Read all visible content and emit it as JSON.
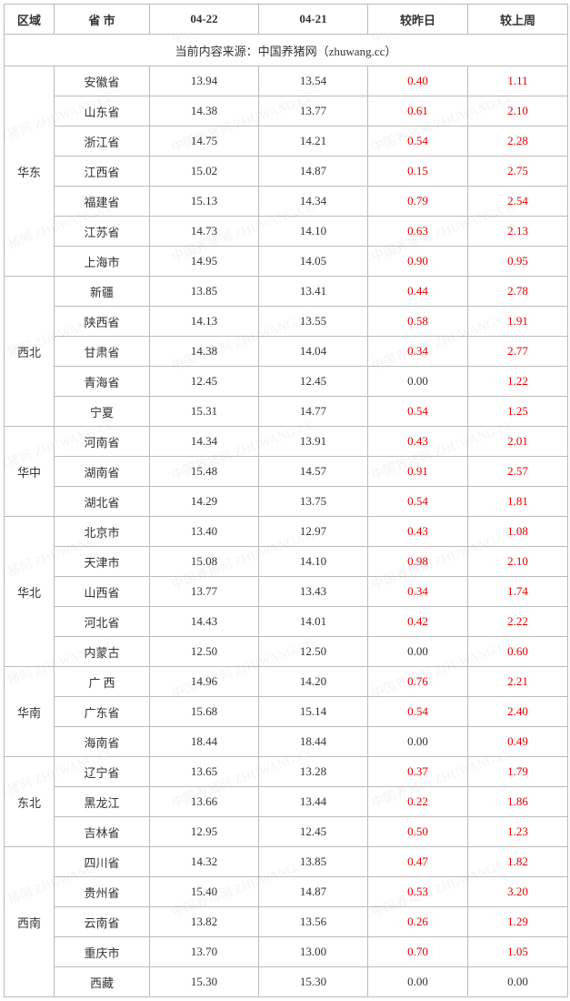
{
  "header": {
    "region": "区域",
    "province": "省 市",
    "date1": "04-22",
    "date2": "04-21",
    "chg_day": "较昨日",
    "chg_week": "较上周"
  },
  "source_line": "当前内容来源：中国养猪网（zhuwang.cc）",
  "watermark_text": "中国养猪网 ZHUWANG.CC",
  "regions": [
    {
      "name": "华东",
      "rows": [
        {
          "prov": "安徽省",
          "d1": "13.94",
          "d2": "13.54",
          "c1": "0.40",
          "c1_red": true,
          "c2": "1.11",
          "c2_red": true
        },
        {
          "prov": "山东省",
          "d1": "14.38",
          "d2": "13.77",
          "c1": "0.61",
          "c1_red": true,
          "c2": "2.10",
          "c2_red": true
        },
        {
          "prov": "浙江省",
          "d1": "14.75",
          "d2": "14.21",
          "c1": "0.54",
          "c1_red": true,
          "c2": "2.28",
          "c2_red": true
        },
        {
          "prov": "江西省",
          "d1": "15.02",
          "d2": "14.87",
          "c1": "0.15",
          "c1_red": true,
          "c2": "2.75",
          "c2_red": true
        },
        {
          "prov": "福建省",
          "d1": "15.13",
          "d2": "14.34",
          "c1": "0.79",
          "c1_red": true,
          "c2": "2.54",
          "c2_red": true
        },
        {
          "prov": "江苏省",
          "d1": "14.73",
          "d2": "14.10",
          "c1": "0.63",
          "c1_red": true,
          "c2": "2.13",
          "c2_red": true
        },
        {
          "prov": "上海市",
          "d1": "14.95",
          "d2": "14.05",
          "c1": "0.90",
          "c1_red": true,
          "c2": "0.95",
          "c2_red": true
        }
      ]
    },
    {
      "name": "西北",
      "rows": [
        {
          "prov": "新疆",
          "d1": "13.85",
          "d2": "13.41",
          "c1": "0.44",
          "c1_red": true,
          "c2": "2.78",
          "c2_red": true
        },
        {
          "prov": "陕西省",
          "d1": "14.13",
          "d2": "13.55",
          "c1": "0.58",
          "c1_red": true,
          "c2": "1.91",
          "c2_red": true
        },
        {
          "prov": "甘肃省",
          "d1": "14.38",
          "d2": "14.04",
          "c1": "0.34",
          "c1_red": true,
          "c2": "2.77",
          "c2_red": true
        },
        {
          "prov": "青海省",
          "d1": "12.45",
          "d2": "12.45",
          "c1": "0.00",
          "c1_red": false,
          "c2": "1.22",
          "c2_red": true
        },
        {
          "prov": "宁夏",
          "d1": "15.31",
          "d2": "14.77",
          "c1": "0.54",
          "c1_red": true,
          "c2": "1.25",
          "c2_red": true
        }
      ]
    },
    {
      "name": "华中",
      "rows": [
        {
          "prov": "河南省",
          "d1": "14.34",
          "d2": "13.91",
          "c1": "0.43",
          "c1_red": true,
          "c2": "2.01",
          "c2_red": true
        },
        {
          "prov": "湖南省",
          "d1": "15.48",
          "d2": "14.57",
          "c1": "0.91",
          "c1_red": true,
          "c2": "2.57",
          "c2_red": true
        },
        {
          "prov": "湖北省",
          "d1": "14.29",
          "d2": "13.75",
          "c1": "0.54",
          "c1_red": true,
          "c2": "1.81",
          "c2_red": true
        }
      ]
    },
    {
      "name": "华北",
      "rows": [
        {
          "prov": "北京市",
          "d1": "13.40",
          "d2": "12.97",
          "c1": "0.43",
          "c1_red": true,
          "c2": "1.08",
          "c2_red": true
        },
        {
          "prov": "天津市",
          "d1": "15.08",
          "d2": "14.10",
          "c1": "0.98",
          "c1_red": true,
          "c2": "2.10",
          "c2_red": true
        },
        {
          "prov": "山西省",
          "d1": "13.77",
          "d2": "13.43",
          "c1": "0.34",
          "c1_red": true,
          "c2": "1.74",
          "c2_red": true
        },
        {
          "prov": "河北省",
          "d1": "14.43",
          "d2": "14.01",
          "c1": "0.42",
          "c1_red": true,
          "c2": "2.22",
          "c2_red": true
        },
        {
          "prov": "内蒙古",
          "d1": "12.50",
          "d2": "12.50",
          "c1": "0.00",
          "c1_red": false,
          "c2": "0.60",
          "c2_red": true
        }
      ]
    },
    {
      "name": "华南",
      "rows": [
        {
          "prov": "广 西",
          "d1": "14.96",
          "d2": "14.20",
          "c1": "0.76",
          "c1_red": true,
          "c2": "2.21",
          "c2_red": true
        },
        {
          "prov": "广东省",
          "d1": "15.68",
          "d2": "15.14",
          "c1": "0.54",
          "c1_red": true,
          "c2": "2.40",
          "c2_red": true
        },
        {
          "prov": "海南省",
          "d1": "18.44",
          "d2": "18.44",
          "c1": "0.00",
          "c1_red": false,
          "c2": "0.49",
          "c2_red": true
        }
      ]
    },
    {
      "name": "东北",
      "rows": [
        {
          "prov": "辽宁省",
          "d1": "13.65",
          "d2": "13.28",
          "c1": "0.37",
          "c1_red": true,
          "c2": "1.79",
          "c2_red": true
        },
        {
          "prov": "黑龙江",
          "d1": "13.66",
          "d2": "13.44",
          "c1": "0.22",
          "c1_red": true,
          "c2": "1.86",
          "c2_red": true
        },
        {
          "prov": "吉林省",
          "d1": "12.95",
          "d2": "12.45",
          "c1": "0.50",
          "c1_red": true,
          "c2": "1.23",
          "c2_red": true
        }
      ]
    },
    {
      "name": "西南",
      "rows": [
        {
          "prov": "四川省",
          "d1": "14.32",
          "d2": "13.85",
          "c1": "0.47",
          "c1_red": true,
          "c2": "1.82",
          "c2_red": true
        },
        {
          "prov": "贵州省",
          "d1": "15.40",
          "d2": "14.87",
          "c1": "0.53",
          "c1_red": true,
          "c2": "3.20",
          "c2_red": true
        },
        {
          "prov": "云南省",
          "d1": "13.82",
          "d2": "13.56",
          "c1": "0.26",
          "c1_red": true,
          "c2": "1.29",
          "c2_red": true
        },
        {
          "prov": "重庆市",
          "d1": "13.70",
          "d2": "13.00",
          "c1": "0.70",
          "c1_red": true,
          "c2": "1.05",
          "c2_red": true
        },
        {
          "prov": "西藏",
          "d1": "15.30",
          "d2": "15.30",
          "c1": "0.00",
          "c1_red": false,
          "c2": "0.00",
          "c2_red": false
        }
      ]
    }
  ]
}
